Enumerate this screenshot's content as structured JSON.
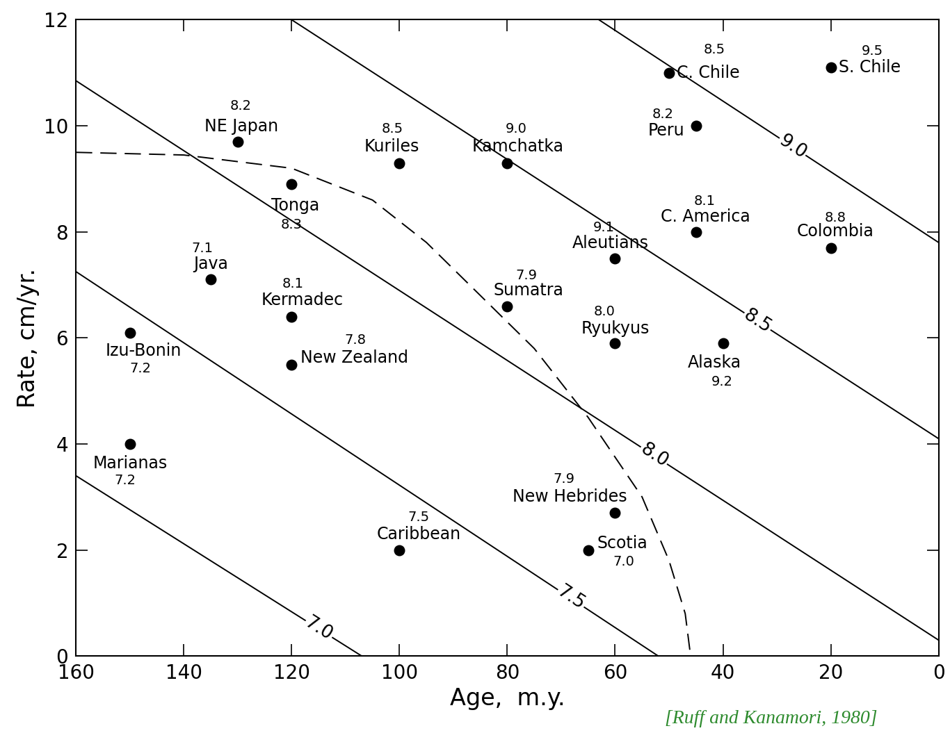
{
  "chart_data": {
    "type": "scatter",
    "x_label": "Age,  m.y.",
    "y_label": "Rate, cm/yr.",
    "xlim": [
      160,
      0
    ],
    "ylim": [
      0,
      12
    ],
    "xticks": [
      160,
      140,
      120,
      100,
      80,
      60,
      40,
      20,
      0
    ],
    "yticks": [
      0,
      2,
      4,
      6,
      8,
      10,
      12
    ],
    "grid": false,
    "color": "#000000",
    "marker": "circle",
    "point_labels": [
      "C. Chile",
      "S. Chile",
      "Peru",
      "NE Japan",
      "Kuriles",
      "Kamchatka",
      "Tonga",
      "C. America",
      "Colombia",
      "Aleutians",
      "Java",
      "Sumatra",
      "Kermadec",
      "Ryukyus",
      "Alaska",
      "Izu-Bonin",
      "New Zealand",
      "Marianas",
      "New Hebrides",
      "Scotia",
      "Caribbean"
    ],
    "x": [
      50,
      20,
      45,
      130,
      100,
      80,
      120,
      45,
      20,
      60,
      135,
      80,
      120,
      60,
      40,
      150,
      120,
      150,
      60,
      65,
      100
    ],
    "values": [
      11.0,
      11.1,
      10.0,
      9.7,
      9.3,
      9.3,
      8.9,
      8.0,
      7.7,
      7.5,
      7.1,
      6.6,
      6.4,
      5.9,
      5.9,
      6.1,
      5.5,
      4.0,
      2.7,
      2.0,
      2.0
    ],
    "magnitudes": [
      8.5,
      9.5,
      8.2,
      8.2,
      8.5,
      9.0,
      8.3,
      8.1,
      8.8,
      9.1,
      7.1,
      7.9,
      8.1,
      8.0,
      9.2,
      7.2,
      7.8,
      7.2,
      7.9,
      7.0,
      7.5
    ],
    "contours": [
      {
        "name": "7.0",
        "x": [
          160,
          107
        ],
        "values": [
          3.4,
          0
        ]
      },
      {
        "name": "7.5",
        "x": [
          160,
          52
        ],
        "values": [
          7.25,
          0
        ]
      },
      {
        "name": "8.0",
        "x": [
          160,
          0
        ],
        "values": [
          10.85,
          0.3
        ]
      },
      {
        "name": "8.5",
        "x": [
          120,
          0
        ],
        "values": [
          12,
          4.1
        ]
      },
      {
        "name": "9.0",
        "x": [
          63,
          0
        ],
        "values": [
          12,
          7.8
        ]
      }
    ],
    "boundary": {
      "line_style": "dashed",
      "x": [
        160,
        140,
        120,
        105,
        95,
        85,
        75,
        65,
        55,
        50,
        47,
        46
      ],
      "values": [
        9.5,
        9.45,
        9.2,
        8.6,
        7.8,
        6.8,
        5.8,
        4.5,
        3.0,
        1.8,
        0.8,
        0
      ]
    },
    "source": "[Ruff and Kanamori, 1980]"
  }
}
